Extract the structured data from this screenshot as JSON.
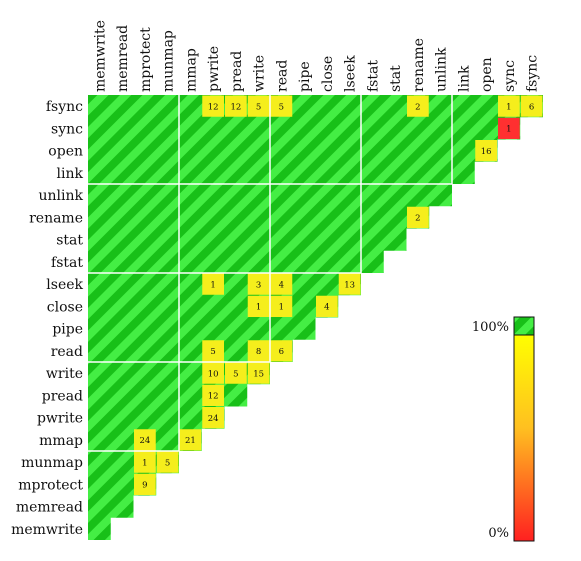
{
  "chart_data": {
    "type": "heatmap",
    "layout": "upper-triangular matrix",
    "title": "",
    "columns": [
      "memwrite",
      "memread",
      "mprotect",
      "munmap",
      "mmap",
      "pwrite",
      "pread",
      "write",
      "read",
      "pipe",
      "close",
      "lseek",
      "fstat",
      "stat",
      "rename",
      "unlink",
      "link",
      "open",
      "sync",
      "fsync"
    ],
    "rows": [
      "fsync",
      "sync",
      "open",
      "link",
      "unlink",
      "rename",
      "stat",
      "fstat",
      "lseek",
      "close",
      "pipe",
      "read",
      "write",
      "pread",
      "pwrite",
      "mmap",
      "munmap",
      "mprotect",
      "memread",
      "memwrite"
    ],
    "group_sizes": [
      4,
      4,
      4,
      4,
      4
    ],
    "default_cell": "100%",
    "cells": [
      {
        "row": "fsync",
        "col": "pwrite",
        "value": 12
      },
      {
        "row": "fsync",
        "col": "pread",
        "value": 12
      },
      {
        "row": "fsync",
        "col": "write",
        "value": 5
      },
      {
        "row": "fsync",
        "col": "read",
        "value": 5
      },
      {
        "row": "fsync",
        "col": "rename",
        "value": 2
      },
      {
        "row": "fsync",
        "col": "sync",
        "value": 1
      },
      {
        "row": "fsync",
        "col": "fsync",
        "value": 6
      },
      {
        "row": "sync",
        "col": "sync",
        "value": 1,
        "color": "red"
      },
      {
        "row": "open",
        "col": "open",
        "value": 16
      },
      {
        "row": "rename",
        "col": "rename",
        "value": 2
      },
      {
        "row": "lseek",
        "col": "pwrite",
        "value": 1
      },
      {
        "row": "lseek",
        "col": "write",
        "value": 3
      },
      {
        "row": "lseek",
        "col": "read",
        "value": 4
      },
      {
        "row": "lseek",
        "col": "lseek",
        "value": 13
      },
      {
        "row": "close",
        "col": "write",
        "value": 1
      },
      {
        "row": "close",
        "col": "read",
        "value": 1
      },
      {
        "row": "close",
        "col": "close",
        "value": 4
      },
      {
        "row": "read",
        "col": "pwrite",
        "value": 5
      },
      {
        "row": "read",
        "col": "write",
        "value": 8
      },
      {
        "row": "read",
        "col": "read",
        "value": 6
      },
      {
        "row": "write",
        "col": "pwrite",
        "value": 10
      },
      {
        "row": "write",
        "col": "pread",
        "value": 5
      },
      {
        "row": "write",
        "col": "write",
        "value": 15
      },
      {
        "row": "pread",
        "col": "pwrite",
        "value": 12
      },
      {
        "row": "pwrite",
        "col": "pwrite",
        "value": 24
      },
      {
        "row": "mmap",
        "col": "mprotect",
        "value": 24
      },
      {
        "row": "mmap",
        "col": "mmap",
        "value": 21
      },
      {
        "row": "munmap",
        "col": "mprotect",
        "value": 1
      },
      {
        "row": "munmap",
        "col": "munmap",
        "value": 5
      },
      {
        "row": "mprotect",
        "col": "mprotect",
        "value": 9
      }
    ],
    "colorbar": {
      "max_label": "100%",
      "min_label": "0%",
      "colors": {
        "top": "#ffff00",
        "bottom": "#ff2020",
        "full": "#44ee44"
      }
    },
    "colors": {
      "full_base": "#44ee44",
      "full_stripe": "#18c018",
      "partial": "#f5ee1c",
      "partial_edge": "#e6d400",
      "low": "#ff3030"
    }
  }
}
